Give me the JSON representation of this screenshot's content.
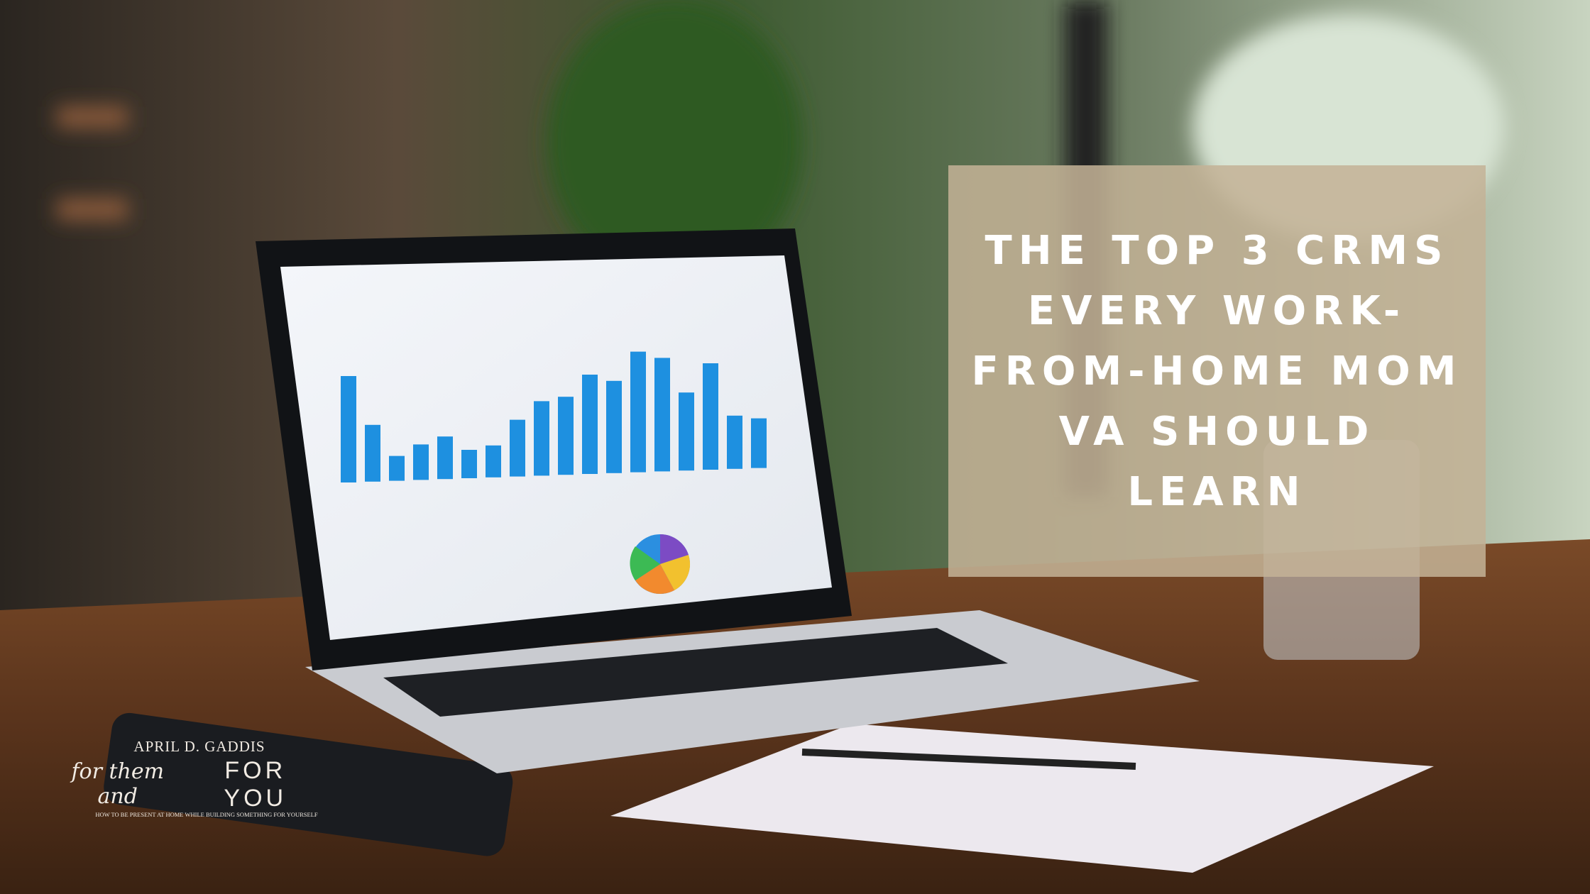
{
  "overlay": {
    "headline": "THE TOP 3 CRMS EVERY WORK-FROM-HOME MOM VA SHOULD LEARN",
    "background_color": "#c4b296"
  },
  "logo": {
    "author": "APRIL D. GADDIS",
    "script_text": "for them and",
    "caps_text": "FOR YOU",
    "tagline": "HOW TO BE PRESENT AT HOME WHILE BUILDING SOMETHING FOR YOURSELF"
  },
  "scene": {
    "subject": "laptop showing a blue bar chart dashboard on a wooden desk",
    "chart_bar_color": "#1e90e0"
  }
}
